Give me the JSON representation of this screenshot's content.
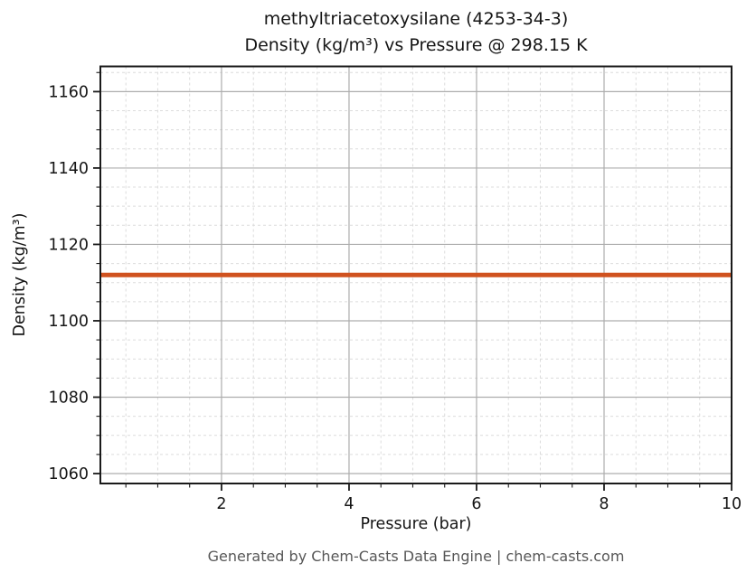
{
  "chart_data": {
    "type": "line",
    "title_line1": "methyltriacetoxysilane (4253-34-3)",
    "title_line2": "Density (kg/m³) vs Pressure @ 298.15 K",
    "xlabel": "Pressure (bar)",
    "ylabel": "Density (kg/m³)",
    "xlim": [
      0.1,
      10
    ],
    "ylim": [
      1057.4,
      1166.6
    ],
    "x_major_ticks": [
      2,
      4,
      6,
      8,
      10
    ],
    "x_minor_step": 0.5,
    "y_major_ticks": [
      1060,
      1080,
      1100,
      1120,
      1140,
      1160
    ],
    "y_minor_step": 5,
    "grid": true,
    "legend": "none",
    "series": [
      {
        "name": "density",
        "x": [
          0.1,
          10
        ],
        "y": [
          1112.0,
          1112.0
        ],
        "color": "#d0521f",
        "linewidth": 5
      }
    ]
  },
  "footer": {
    "text": "Generated by Chem-Casts Data Engine | chem-casts.com"
  }
}
